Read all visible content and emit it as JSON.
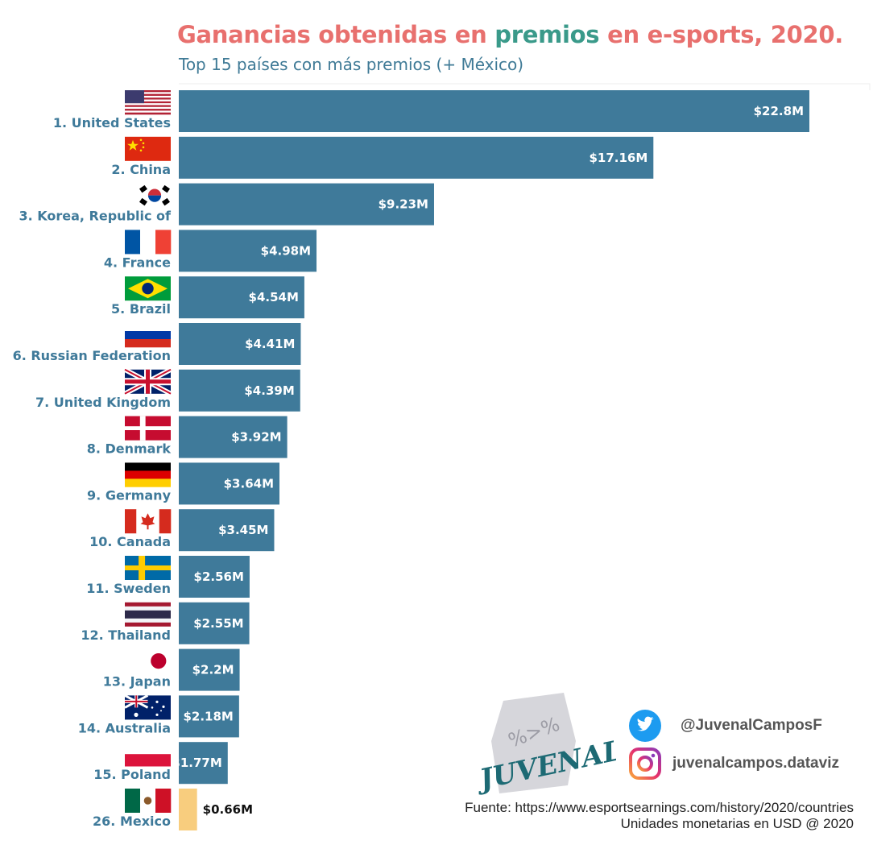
{
  "header": {
    "title_part1": "Ganancias obtenidas en ",
    "title_highlight": "premios",
    "title_part2": " en e-sports, 2020.",
    "subtitle": "Top 15 países con más premios (+ México)"
  },
  "chart_data": {
    "type": "bar",
    "orientation": "horizontal",
    "title": "Ganancias obtenidas en premios en e-sports, 2020.",
    "subtitle": "Top 15 países con más premios (+ México)",
    "categories": [
      "1. United States",
      "2. China",
      "3. Korea, Republic of",
      "4. France",
      "5. Brazil",
      "6. Russian Federation",
      "7. United Kingdom",
      "8. Denmark",
      "9. Germany",
      "10. Canada",
      "11. Sweden",
      "12. Thailand",
      "13. Japan",
      "14. Australia",
      "15. Poland",
      "26. Mexico"
    ],
    "values": [
      22.8,
      17.16,
      9.23,
      4.98,
      4.54,
      4.41,
      4.39,
      3.92,
      3.64,
      3.45,
      2.56,
      2.55,
      2.2,
      2.18,
      1.77,
      0.66
    ],
    "value_labels": [
      "$22.8M",
      "$17.16M",
      "$9.23M",
      "$4.98M",
      "$4.54M",
      "$4.41M",
      "$4.39M",
      "$3.92M",
      "$3.64M",
      "$3.45M",
      "$2.56M",
      "$2.55M",
      "$2.2M",
      "$2.18M",
      "$1.77M",
      "$0.66M"
    ],
    "flags": [
      "us-flag-icon",
      "china-flag-icon",
      "korea-flag-icon",
      "france-flag-icon",
      "brazil-flag-icon",
      "russia-flag-icon",
      "uk-flag-icon",
      "denmark-flag-icon",
      "germany-flag-icon",
      "canada-flag-icon",
      "sweden-flag-icon",
      "thailand-flag-icon",
      "japan-flag-icon",
      "australia-flag-icon",
      "poland-flag-icon",
      "mexico-flag-icon"
    ],
    "highlight": "26. Mexico",
    "units": "USD millions",
    "xlim": [
      0,
      25
    ],
    "grid": false,
    "legend": "none",
    "colors": {
      "bar": "#3f7a9a",
      "highlight_bar": "#f8cd7e",
      "label": "#3f7a9a",
      "value_text": "#ffffff",
      "highlight_value_text": "#111111"
    }
  },
  "social": {
    "twitter": "@JuvenalCamposF",
    "instagram": "juvenalcampos.dataviz",
    "twitter_icon": "twitter-bird-icon",
    "instagram_icon": "instagram-icon",
    "logo_text": "JUVENAL",
    "logo_glyph": "%>%"
  },
  "footer": {
    "source": "Fuente: https://www.esportsearnings.com/history/2020/countries",
    "units": "Unidades monetarias en USD @ 2020"
  }
}
